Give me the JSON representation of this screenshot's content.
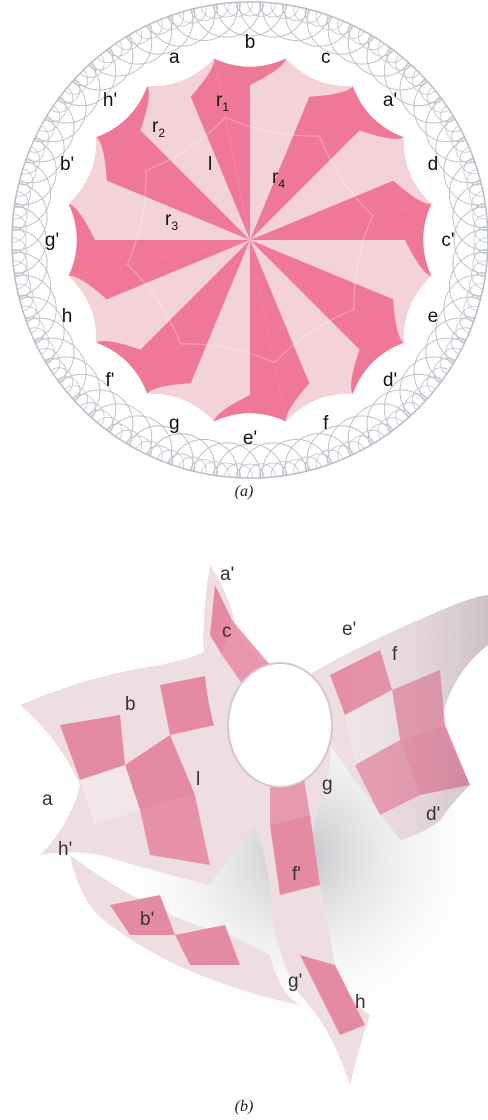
{
  "figure_a": {
    "caption": "(a)",
    "edge_labels": [
      "a",
      "b",
      "c",
      "a'",
      "d",
      "c'",
      "e",
      "d'",
      "f",
      "e'",
      "g",
      "f'",
      "h",
      "g'",
      "b'",
      "h'"
    ],
    "region_labels": {
      "r1": {
        "base": "r",
        "sub": "1"
      },
      "r2": {
        "base": "r",
        "sub": "2"
      },
      "r3": {
        "base": "r",
        "sub": "3"
      },
      "r4": {
        "base": "r",
        "sub": "4"
      },
      "l": "l"
    },
    "colors": {
      "dark": "#ee7896",
      "light": "#f4d2d9",
      "grid": "#b8bcc4"
    }
  },
  "figure_b": {
    "caption": "(b)",
    "labels": [
      "a'",
      "c",
      "e'",
      "f",
      "b",
      "l",
      "a",
      "g",
      "d'",
      "h'",
      "f'",
      "b'",
      "g'",
      "h"
    ],
    "colors": {
      "dark": "#e58aa3",
      "light": "#eedde2",
      "shadow": "#c8c8cc"
    }
  }
}
